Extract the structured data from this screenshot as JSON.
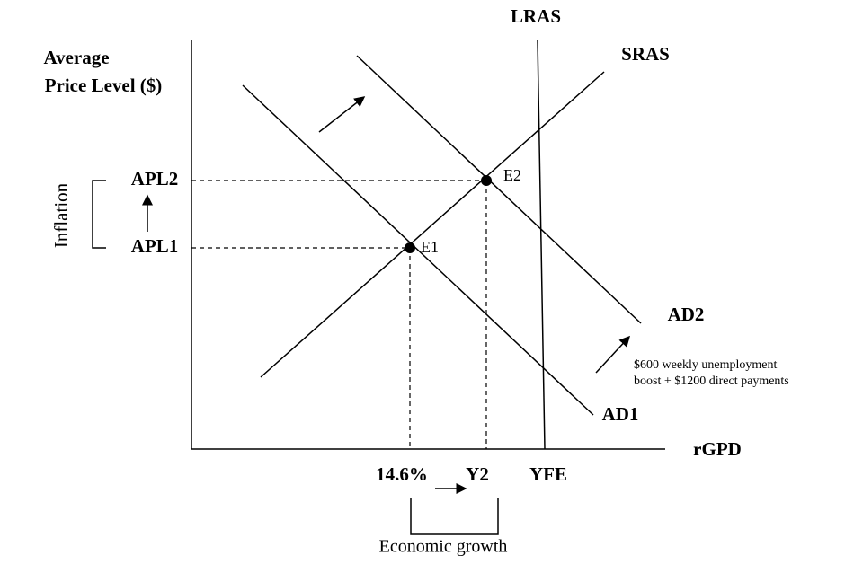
{
  "axes": {
    "y_label": [
      "Average",
      "Price Level ($)"
    ],
    "x_label": "rGPD"
  },
  "curves": {
    "lras": "LRAS",
    "sras": "SRAS",
    "ad1": "AD1",
    "ad2": "AD2"
  },
  "points": {
    "e1": "E1",
    "e2": "E2"
  },
  "y_levels": {
    "apl1": "APL1",
    "apl2": "APL2",
    "bracket": "Inflation"
  },
  "x_levels": {
    "y1": "14.6%",
    "y2": "Y2",
    "yfe": "YFE",
    "bracket": "Economic growth"
  },
  "annotation": [
    "$600 weekly unemployment",
    "boost + $1200 direct payments"
  ]
}
